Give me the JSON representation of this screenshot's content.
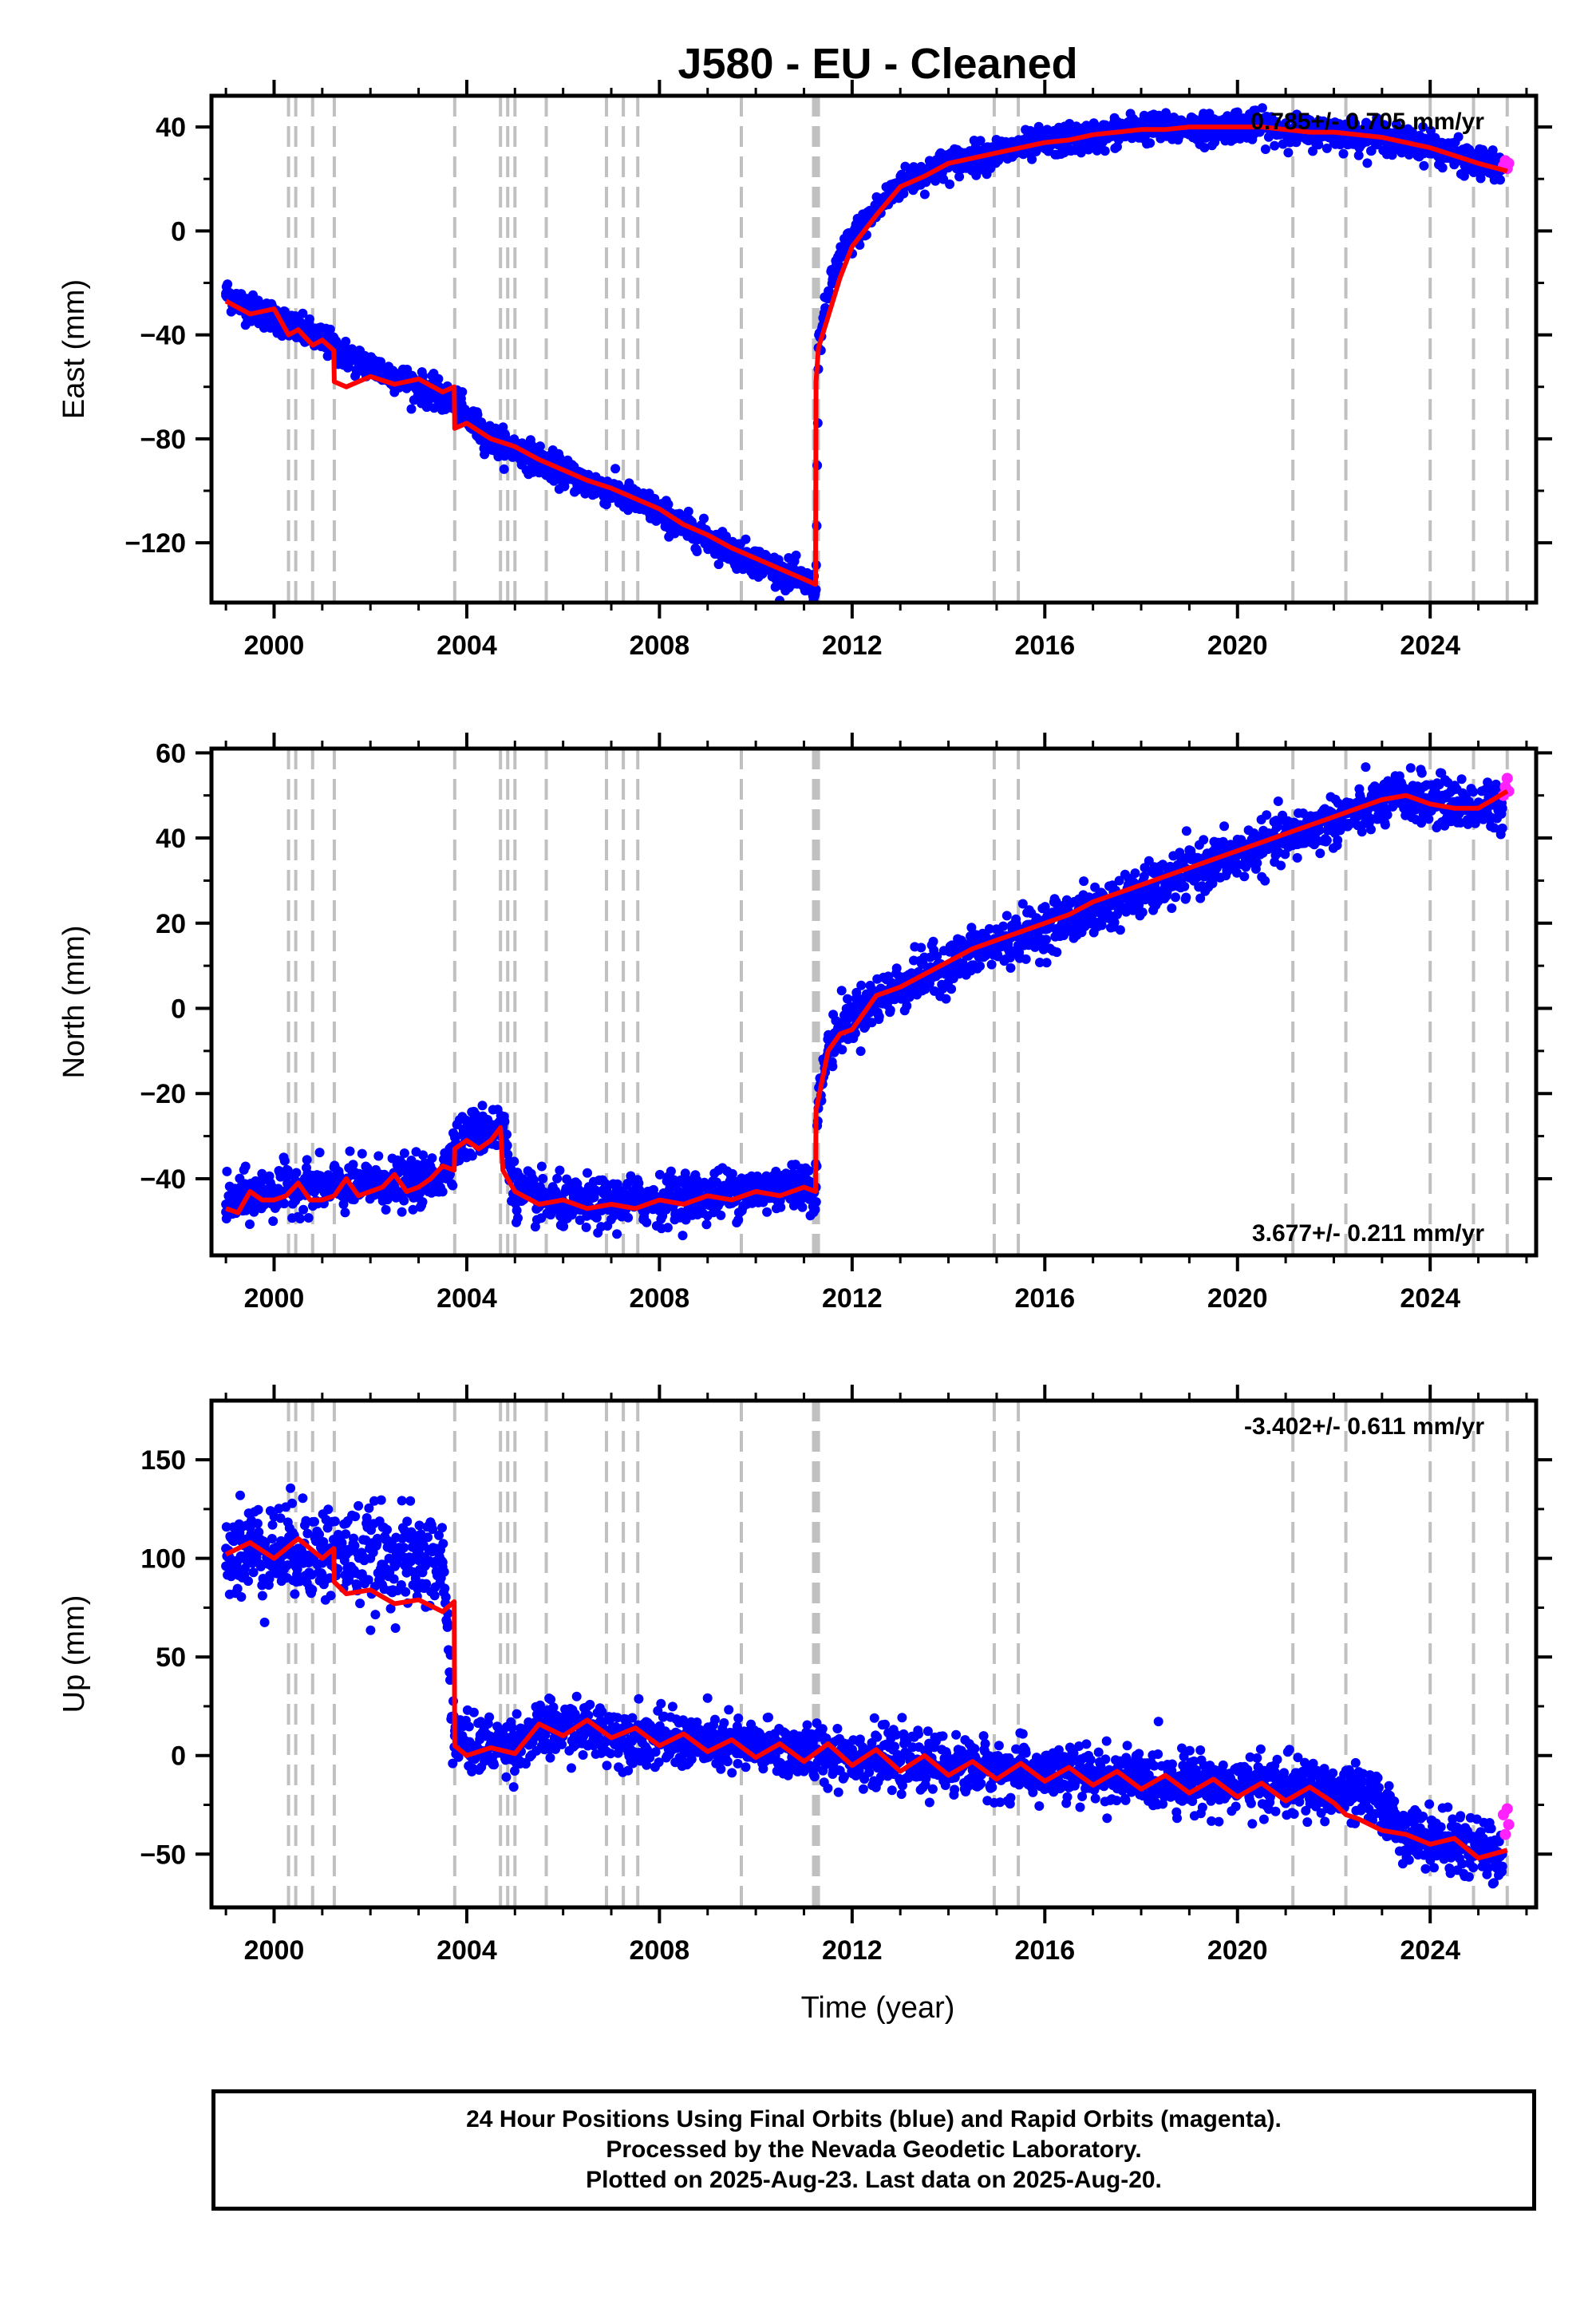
{
  "title": "J580  - EU - Cleaned",
  "xlabel": "Time (year)",
  "footer": {
    "line1": "24 Hour Positions Using Final Orbits (blue) and Rapid Orbits (magenta).",
    "line2": "Processed by the Nevada Geodetic Laboratory.",
    "line3": "Plotted on 2025-Aug-23. Last data on 2025-Aug-20."
  },
  "colors": {
    "final": "#0000ff",
    "rapid": "#ff22ff",
    "model": "#ff0000",
    "events": "#c0c0c0"
  },
  "chart_data": [
    {
      "type": "scatter",
      "panel": "east",
      "ylabel": "East (mm)",
      "rate_text": "0.785+/- 0.705 mm/yr",
      "xlim": [
        1998.7,
        2026.2
      ],
      "ylim": [
        -143,
        52
      ],
      "xticks": [
        2000,
        2004,
        2008,
        2012,
        2016,
        2020,
        2024
      ],
      "yticks": [
        -120,
        -80,
        -40,
        0,
        40
      ],
      "events": [
        2000.3,
        2000.45,
        2000.8,
        2001.25,
        2003.75,
        2004.7,
        2004.85,
        2005.0,
        2005.65,
        2006.9,
        2007.25,
        2007.55,
        2009.7,
        2011.2,
        2011.25,
        2011.3,
        2014.95,
        2015.45,
        2021.15,
        2022.25,
        2024.0,
        2024.9,
        2025.6
      ],
      "series": [
        {
          "name": "Final Orbits",
          "x": [
            1999.0,
            1999.5,
            2000.0,
            2000.5,
            2001.0,
            2001.25,
            2001.5,
            2002.0,
            2002.5,
            2003.0,
            2003.5,
            2003.75,
            2004.0,
            2004.5,
            2005.0,
            2005.5,
            2006.0,
            2006.5,
            2007.0,
            2007.5,
            2008.0,
            2008.5,
            2009.0,
            2009.5,
            2010.0,
            2010.5,
            2011.0,
            2011.25,
            2011.3,
            2011.5,
            2011.75,
            2012.0,
            2012.5,
            2013.0,
            2013.5,
            2014.0,
            2014.5,
            2015.0,
            2015.5,
            2016.0,
            2016.5,
            2017.0,
            2017.5,
            2018.0,
            2018.5,
            2019.0,
            2019.5,
            2020.0,
            2020.5,
            2021.0,
            2021.5,
            2022.0,
            2022.5,
            2023.0,
            2023.5,
            2024.0,
            2024.5,
            2025.0,
            2025.5
          ],
          "y": [
            -24,
            -30,
            -33,
            -38,
            -42,
            -45,
            -48,
            -52,
            -56,
            -60,
            -64,
            -66,
            -72,
            -80,
            -84,
            -88,
            -93,
            -97,
            -100,
            -104,
            -108,
            -114,
            -118,
            -123,
            -127,
            -131,
            -135,
            -138,
            -45,
            -25,
            -10,
            -3,
            8,
            18,
            22,
            26,
            28,
            30,
            32,
            34,
            35,
            36,
            38,
            40,
            39,
            40,
            39,
            41,
            40,
            39,
            38,
            38,
            37,
            36,
            34,
            33,
            29,
            26,
            24
          ]
        },
        {
          "name": "Rapid Orbits",
          "x": [
            2025.52,
            2025.56,
            2025.6,
            2025.63
          ],
          "y": [
            25,
            27,
            24,
            26
          ]
        },
        {
          "name": "Model",
          "x": [
            1999.0,
            1999.5,
            2000.0,
            2000.3,
            2000.5,
            2000.8,
            2001.0,
            2001.24,
            2001.25,
            2001.5,
            2002.0,
            2002.5,
            2003.0,
            2003.5,
            2003.74,
            2003.75,
            2004.0,
            2004.5,
            2005.0,
            2005.5,
            2006.0,
            2006.5,
            2007.0,
            2007.5,
            2008.0,
            2008.5,
            2009.0,
            2009.5,
            2010.0,
            2010.5,
            2011.0,
            2011.24,
            2011.25,
            2011.3,
            2011.5,
            2011.75,
            2012.0,
            2012.5,
            2013.0,
            2013.5,
            2014.0,
            2014.5,
            2015.0,
            2015.5,
            2016.0,
            2016.5,
            2017.0,
            2017.5,
            2018.0,
            2018.5,
            2019.0,
            2019.5,
            2020.0,
            2020.5,
            2021.0,
            2021.5,
            2022.0,
            2022.5,
            2023.0,
            2023.5,
            2024.0,
            2024.5,
            2025.0,
            2025.6
          ],
          "y": [
            -27,
            -32,
            -30,
            -40,
            -38,
            -44,
            -42,
            -46,
            -58,
            -60,
            -56,
            -59,
            -57,
            -62,
            -60,
            -76,
            -74,
            -80,
            -83,
            -88,
            -92,
            -96,
            -99,
            -103,
            -107,
            -113,
            -117,
            -122,
            -126,
            -130,
            -134,
            -136,
            -58,
            -45,
            -33,
            -18,
            -6,
            6,
            17,
            21,
            26,
            28,
            30,
            32,
            34,
            35,
            37,
            38,
            39,
            39,
            40,
            40,
            40,
            40,
            39,
            38,
            38,
            37,
            36,
            34,
            32,
            29,
            26,
            23
          ]
        }
      ]
    },
    {
      "type": "scatter",
      "panel": "north",
      "ylabel": "North (mm)",
      "rate_text": "3.677+/- 0.211 mm/yr",
      "xlim": [
        1998.7,
        2026.2
      ],
      "ylim": [
        -58,
        61
      ],
      "xticks": [
        2000,
        2004,
        2008,
        2012,
        2016,
        2020,
        2024
      ],
      "yticks": [
        -40,
        -20,
        0,
        20,
        40,
        60
      ],
      "events": [
        2000.3,
        2000.45,
        2000.8,
        2001.25,
        2003.75,
        2004.7,
        2004.85,
        2005.0,
        2005.65,
        2006.9,
        2007.25,
        2007.55,
        2009.7,
        2011.2,
        2011.25,
        2011.3,
        2014.95,
        2015.45,
        2021.15,
        2022.25,
        2024.0,
        2024.9,
        2025.6
      ],
      "series": [
        {
          "name": "Final Orbits",
          "x": [
            1999.0,
            1999.5,
            2000.0,
            2000.5,
            2001.0,
            2001.5,
            2002.0,
            2002.5,
            2003.0,
            2003.5,
            2003.75,
            2004.0,
            2004.5,
            2004.75,
            2005.0,
            2005.5,
            2006.0,
            2006.5,
            2007.0,
            2007.5,
            2008.0,
            2008.5,
            2009.0,
            2009.5,
            2010.0,
            2010.5,
            2011.0,
            2011.25,
            2011.3,
            2011.5,
            2011.75,
            2012.0,
            2012.5,
            2013.0,
            2013.5,
            2014.0,
            2014.5,
            2015.0,
            2015.5,
            2016.0,
            2016.5,
            2017.0,
            2017.5,
            2018.0,
            2018.5,
            2019.0,
            2019.5,
            2020.0,
            2020.5,
            2021.0,
            2021.5,
            2022.0,
            2022.5,
            2023.0,
            2023.5,
            2024.0,
            2024.5,
            2025.0,
            2025.5
          ],
          "y": [
            -46,
            -44,
            -43,
            -42,
            -42,
            -42,
            -41,
            -41,
            -41,
            -39,
            -32,
            -30,
            -28,
            -28,
            -43,
            -45,
            -46,
            -46,
            -46,
            -45,
            -45,
            -44,
            -44,
            -43,
            -43,
            -42,
            -41,
            -42,
            -22,
            -10,
            -4,
            -2,
            2,
            5,
            8,
            10,
            13,
            15,
            17,
            19,
            21,
            23,
            25,
            27,
            29,
            32,
            34,
            36,
            38,
            40,
            42,
            44,
            46,
            48,
            50,
            49,
            48,
            47,
            47
          ]
        },
        {
          "name": "Rapid Orbits",
          "x": [
            2025.52,
            2025.56,
            2025.6,
            2025.63
          ],
          "y": [
            50,
            52,
            54,
            51
          ]
        },
        {
          "name": "Model",
          "x": [
            1999.0,
            1999.25,
            1999.5,
            1999.75,
            2000.0,
            2000.25,
            2000.5,
            2000.75,
            2001.0,
            2001.25,
            2001.5,
            2001.75,
            2002.0,
            2002.25,
            2002.5,
            2002.75,
            2003.0,
            2003.25,
            2003.5,
            2003.74,
            2003.75,
            2004.0,
            2004.25,
            2004.5,
            2004.7,
            2004.75,
            2005.0,
            2005.5,
            2006.0,
            2006.5,
            2007.0,
            2007.5,
            2008.0,
            2008.5,
            2009.0,
            2009.5,
            2010.0,
            2010.5,
            2011.0,
            2011.24,
            2011.25,
            2011.5,
            2011.75,
            2012.0,
            2012.5,
            2013.0,
            2013.5,
            2014.0,
            2014.5,
            2015.0,
            2015.5,
            2016.0,
            2016.5,
            2017.0,
            2017.5,
            2018.0,
            2018.5,
            2019.0,
            2019.5,
            2020.0,
            2020.5,
            2021.0,
            2021.5,
            2022.0,
            2022.5,
            2023.0,
            2023.5,
            2024.0,
            2024.5,
            2025.0,
            2025.6
          ],
          "y": [
            -47,
            -48,
            -43,
            -45,
            -45,
            -44,
            -41,
            -45,
            -45,
            -44,
            -40,
            -44,
            -43,
            -42,
            -39,
            -43,
            -42,
            -40,
            -37,
            -38,
            -33,
            -31,
            -33,
            -31,
            -28,
            -38,
            -43,
            -46,
            -45,
            -47,
            -46,
            -47,
            -45,
            -46,
            -44,
            -45,
            -43,
            -44,
            -42,
            -43,
            -24,
            -10,
            -6,
            -5,
            3,
            5,
            8,
            11,
            14,
            16,
            18,
            20,
            22,
            25,
            27,
            29,
            31,
            33,
            35,
            37,
            39,
            41,
            43,
            45,
            47,
            49,
            50,
            48,
            47,
            47,
            51
          ]
        }
      ]
    },
    {
      "type": "scatter",
      "panel": "up",
      "ylabel": "Up (mm)",
      "rate_text": "-3.402+/- 0.611 mm/yr",
      "xlim": [
        1998.7,
        2026.2
      ],
      "ylim": [
        -77,
        180
      ],
      "xticks": [
        2000,
        2004,
        2008,
        2012,
        2016,
        2020,
        2024
      ],
      "yticks": [
        -50,
        0,
        50,
        100,
        150
      ],
      "events": [
        2000.3,
        2000.45,
        2000.8,
        2001.25,
        2003.75,
        2004.7,
        2004.85,
        2005.0,
        2005.65,
        2006.9,
        2007.25,
        2007.55,
        2009.7,
        2011.2,
        2011.25,
        2011.3,
        2014.95,
        2015.45,
        2021.15,
        2022.25,
        2024.0,
        2024.9,
        2025.6
      ],
      "series": [
        {
          "name": "Final Orbits",
          "x": [
            1999.0,
            1999.5,
            2000.0,
            2000.5,
            2001.0,
            2001.5,
            2002.0,
            2002.5,
            2003.0,
            2003.5,
            2003.75,
            2004.0,
            2004.5,
            2005.0,
            2005.5,
            2006.0,
            2006.5,
            2007.0,
            2007.5,
            2008.0,
            2008.5,
            2009.0,
            2009.5,
            2010.0,
            2010.5,
            2011.0,
            2011.5,
            2012.0,
            2012.5,
            2013.0,
            2013.5,
            2014.0,
            2014.5,
            2015.0,
            2015.5,
            2016.0,
            2016.5,
            2017.0,
            2017.5,
            2018.0,
            2018.5,
            2019.0,
            2019.5,
            2020.0,
            2020.5,
            2021.0,
            2021.5,
            2022.0,
            2022.5,
            2023.0,
            2023.5,
            2024.0,
            2024.5,
            2025.0,
            2025.5
          ],
          "y": [
            105,
            105,
            104,
            105,
            103,
            102,
            100,
            100,
            99,
            98,
            10,
            5,
            5,
            6,
            12,
            14,
            13,
            11,
            10,
            8,
            7,
            6,
            5,
            4,
            3,
            2,
            1,
            0,
            -2,
            -3,
            -4,
            -5,
            -6,
            -7,
            -8,
            -9,
            -10,
            -10,
            -11,
            -12,
            -13,
            -13,
            -14,
            -15,
            -15,
            -16,
            -17,
            -18,
            -20,
            -25,
            -40,
            -42,
            -45,
            -48,
            -50
          ]
        },
        {
          "name": "Rapid Orbits",
          "x": [
            2025.52,
            2025.56,
            2025.6,
            2025.63
          ],
          "y": [
            -30,
            -40,
            -27,
            -35
          ]
        },
        {
          "name": "Model",
          "x": [
            1999.0,
            1999.5,
            2000.0,
            2000.5,
            2000.8,
            2001.0,
            2001.24,
            2001.25,
            2001.5,
            2002.0,
            2002.5,
            2003.0,
            2003.5,
            2003.74,
            2003.75,
            2004.0,
            2004.5,
            2005.0,
            2005.5,
            2006.0,
            2006.5,
            2007.0,
            2007.5,
            2008.0,
            2008.5,
            2009.0,
            2009.5,
            2010.0,
            2010.5,
            2011.0,
            2011.5,
            2012.0,
            2012.5,
            2013.0,
            2013.5,
            2014.0,
            2014.5,
            2015.0,
            2015.5,
            2016.0,
            2016.5,
            2017.0,
            2017.5,
            2018.0,
            2018.5,
            2019.0,
            2019.5,
            2020.0,
            2020.5,
            2021.0,
            2021.5,
            2022.0,
            2022.25,
            2022.5,
            2023.0,
            2023.5,
            2024.0,
            2024.5,
            2025.0,
            2025.6
          ],
          "y": [
            102,
            108,
            100,
            110,
            104,
            100,
            105,
            88,
            82,
            84,
            77,
            79,
            73,
            78,
            5,
            0,
            4,
            1,
            16,
            10,
            18,
            9,
            14,
            5,
            11,
            2,
            8,
            -1,
            6,
            -3,
            6,
            -5,
            3,
            -8,
            0,
            -10,
            -3,
            -12,
            -4,
            -13,
            -6,
            -15,
            -8,
            -17,
            -10,
            -19,
            -12,
            -21,
            -14,
            -23,
            -16,
            -24,
            -30,
            -32,
            -38,
            -40,
            -45,
            -42,
            -52,
            -48
          ]
        }
      ]
    }
  ]
}
